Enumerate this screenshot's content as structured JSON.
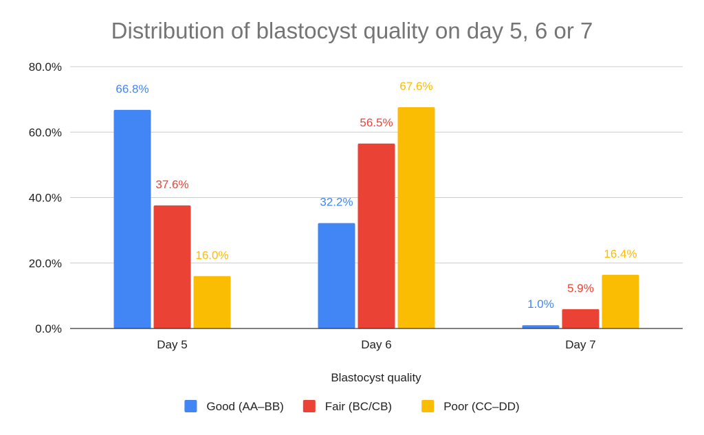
{
  "chart_data": {
    "type": "bar",
    "title": "Distribution of blastocyst quality on day 5, 6 or 7",
    "xlabel": "Blastocyst quality",
    "ylabel": "",
    "categories": [
      "Day 5",
      "Day 6",
      "Day 7"
    ],
    "ylim": [
      0,
      80
    ],
    "yticks": [
      0,
      20,
      40,
      60,
      80
    ],
    "ytick_labels": [
      "0.0%",
      "20.0%",
      "40.0%",
      "60.0%",
      "80.0%"
    ],
    "grid": true,
    "legend_position": "bottom",
    "series": [
      {
        "name": "Good (AA–BB)",
        "color": "#4285F4",
        "values": [
          66.8,
          32.2,
          1.0
        ],
        "labels": [
          "66.8%",
          "32.2%",
          "1.0%"
        ]
      },
      {
        "name": "Fair (BC/CB)",
        "color": "#EA4335",
        "values": [
          37.6,
          56.5,
          5.9
        ],
        "labels": [
          "37.6%",
          "56.5%",
          "5.9%"
        ]
      },
      {
        "name": "Poor (CC–DD)",
        "color": "#FBBC04",
        "values": [
          16.0,
          67.6,
          16.4
        ],
        "labels": [
          "16.0%",
          "67.6%",
          "16.4%"
        ]
      }
    ]
  }
}
